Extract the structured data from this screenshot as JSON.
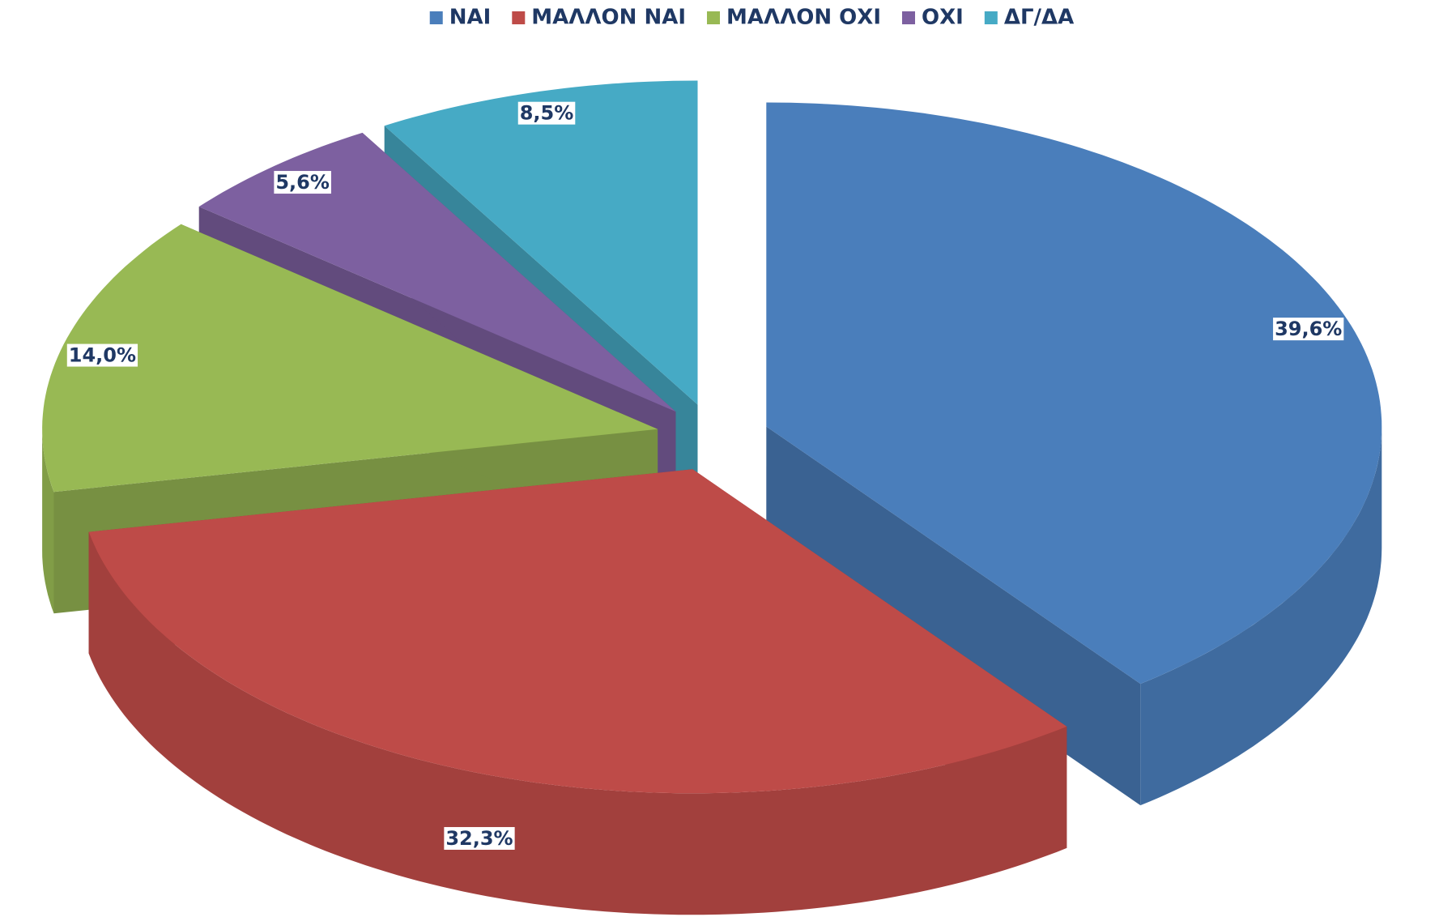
{
  "chart_data": {
    "type": "pie3d",
    "categories": [
      "ΝΑΙ",
      "ΜΑΛΛΟΝ ΝΑΙ",
      "ΜΑΛΛΟΝ ΟΧΙ",
      "ΟΧΙ",
      "ΔΓ/ΔΑ"
    ],
    "values": [
      39.6,
      32.3,
      14.0,
      5.6,
      8.5
    ],
    "value_labels": [
      "39,6%",
      "32,3%",
      "14,0%",
      "5,6%",
      "8,5%"
    ],
    "colors": [
      "#4a7ebb",
      "#be4b48",
      "#98b954",
      "#7d60a0",
      "#46aac5"
    ],
    "legend": "top"
  }
}
